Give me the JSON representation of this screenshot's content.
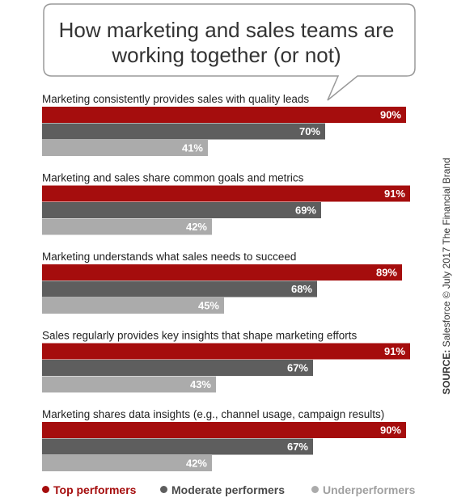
{
  "chart_data": {
    "type": "bar",
    "orientation": "horizontal",
    "title": "How marketing and sales teams are working together (or not)",
    "categories": [
      "Marketing consistently provides sales with quality leads",
      "Marketing and sales share  common goals and metrics",
      "Marketing understands what sales needs to succeed",
      "Sales regularly provides key insights that shape marketing efforts",
      "Marketing shares data insights (e.g., channel usage, campaign results)"
    ],
    "series": [
      {
        "name": "Top performers",
        "color": "#a50d0d",
        "values": [
          90,
          91,
          89,
          91,
          90
        ]
      },
      {
        "name": "Moderate performers",
        "color": "#5e5e5e",
        "values": [
          70,
          69,
          68,
          67,
          67
        ]
      },
      {
        "name": "Underperformers",
        "color": "#ababab",
        "values": [
          41,
          42,
          45,
          43,
          42
        ]
      }
    ],
    "value_suffix": "%",
    "xlim": [
      0,
      100
    ],
    "grid": false,
    "legend_position": "bottom"
  },
  "title_line1": "How marketing and sales teams are",
  "title_line2": "working together (or not)",
  "source_label": "SOURCE:",
  "source_text": "Salesforce © July 2017 The Financial Brand"
}
